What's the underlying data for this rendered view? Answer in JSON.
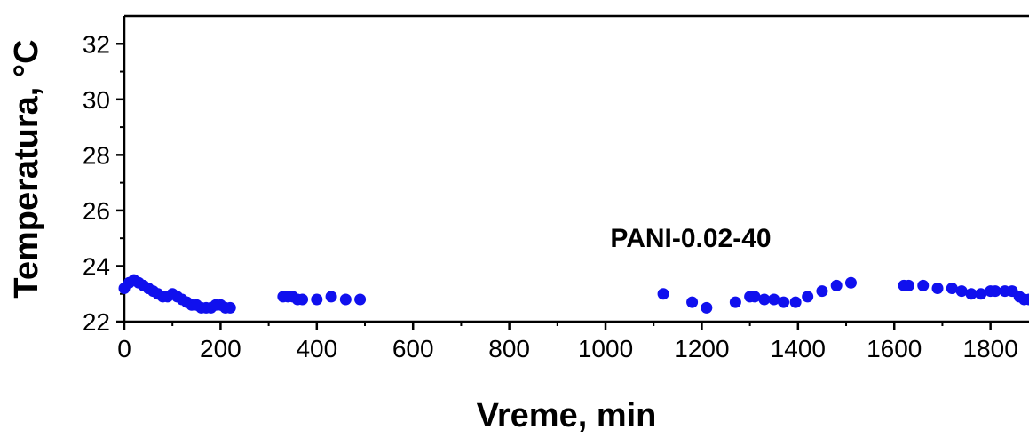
{
  "chart_data": {
    "type": "scatter",
    "title": "",
    "xlabel": "Vreme, min",
    "ylabel": "Temperatura, °C",
    "xlim": [
      0,
      1880
    ],
    "ylim": [
      22,
      33
    ],
    "x_ticks": [
      0,
      200,
      400,
      600,
      800,
      1000,
      1200,
      1400,
      1600,
      1800
    ],
    "y_ticks": [
      22,
      24,
      26,
      28,
      30,
      32
    ],
    "grid": false,
    "legend": "none",
    "annotations": [
      {
        "text": "PANI-0.02-40"
      }
    ],
    "series": [
      {
        "color": "#1010ee",
        "marker": "circle",
        "x": [
          0,
          10,
          20,
          30,
          40,
          50,
          60,
          70,
          80,
          90,
          100,
          110,
          120,
          130,
          140,
          150,
          160,
          170,
          180,
          190,
          200,
          210,
          220,
          330,
          340,
          350,
          360,
          370,
          400,
          430,
          460,
          490,
          1120,
          1180,
          1210,
          1270,
          1300,
          1310,
          1330,
          1350,
          1370,
          1395,
          1420,
          1450,
          1480,
          1510,
          1620,
          1630,
          1660,
          1690,
          1720,
          1740,
          1760,
          1780,
          1800,
          1810,
          1830,
          1845,
          1860,
          1870,
          1880
        ],
        "y": [
          23.2,
          23.4,
          23.5,
          23.4,
          23.3,
          23.2,
          23.1,
          23.0,
          22.9,
          22.9,
          23.0,
          22.9,
          22.8,
          22.7,
          22.6,
          22.6,
          22.5,
          22.5,
          22.5,
          22.6,
          22.6,
          22.5,
          22.5,
          22.9,
          22.9,
          22.9,
          22.8,
          22.8,
          22.8,
          22.9,
          22.8,
          22.8,
          23.0,
          22.7,
          22.5,
          22.7,
          22.9,
          22.9,
          22.8,
          22.8,
          22.7,
          22.7,
          22.9,
          23.1,
          23.3,
          23.4,
          23.3,
          23.3,
          23.3,
          23.2,
          23.2,
          23.1,
          23.0,
          23.0,
          23.1,
          23.1,
          23.1,
          23.1,
          22.9,
          22.8,
          22.8
        ]
      }
    ]
  }
}
